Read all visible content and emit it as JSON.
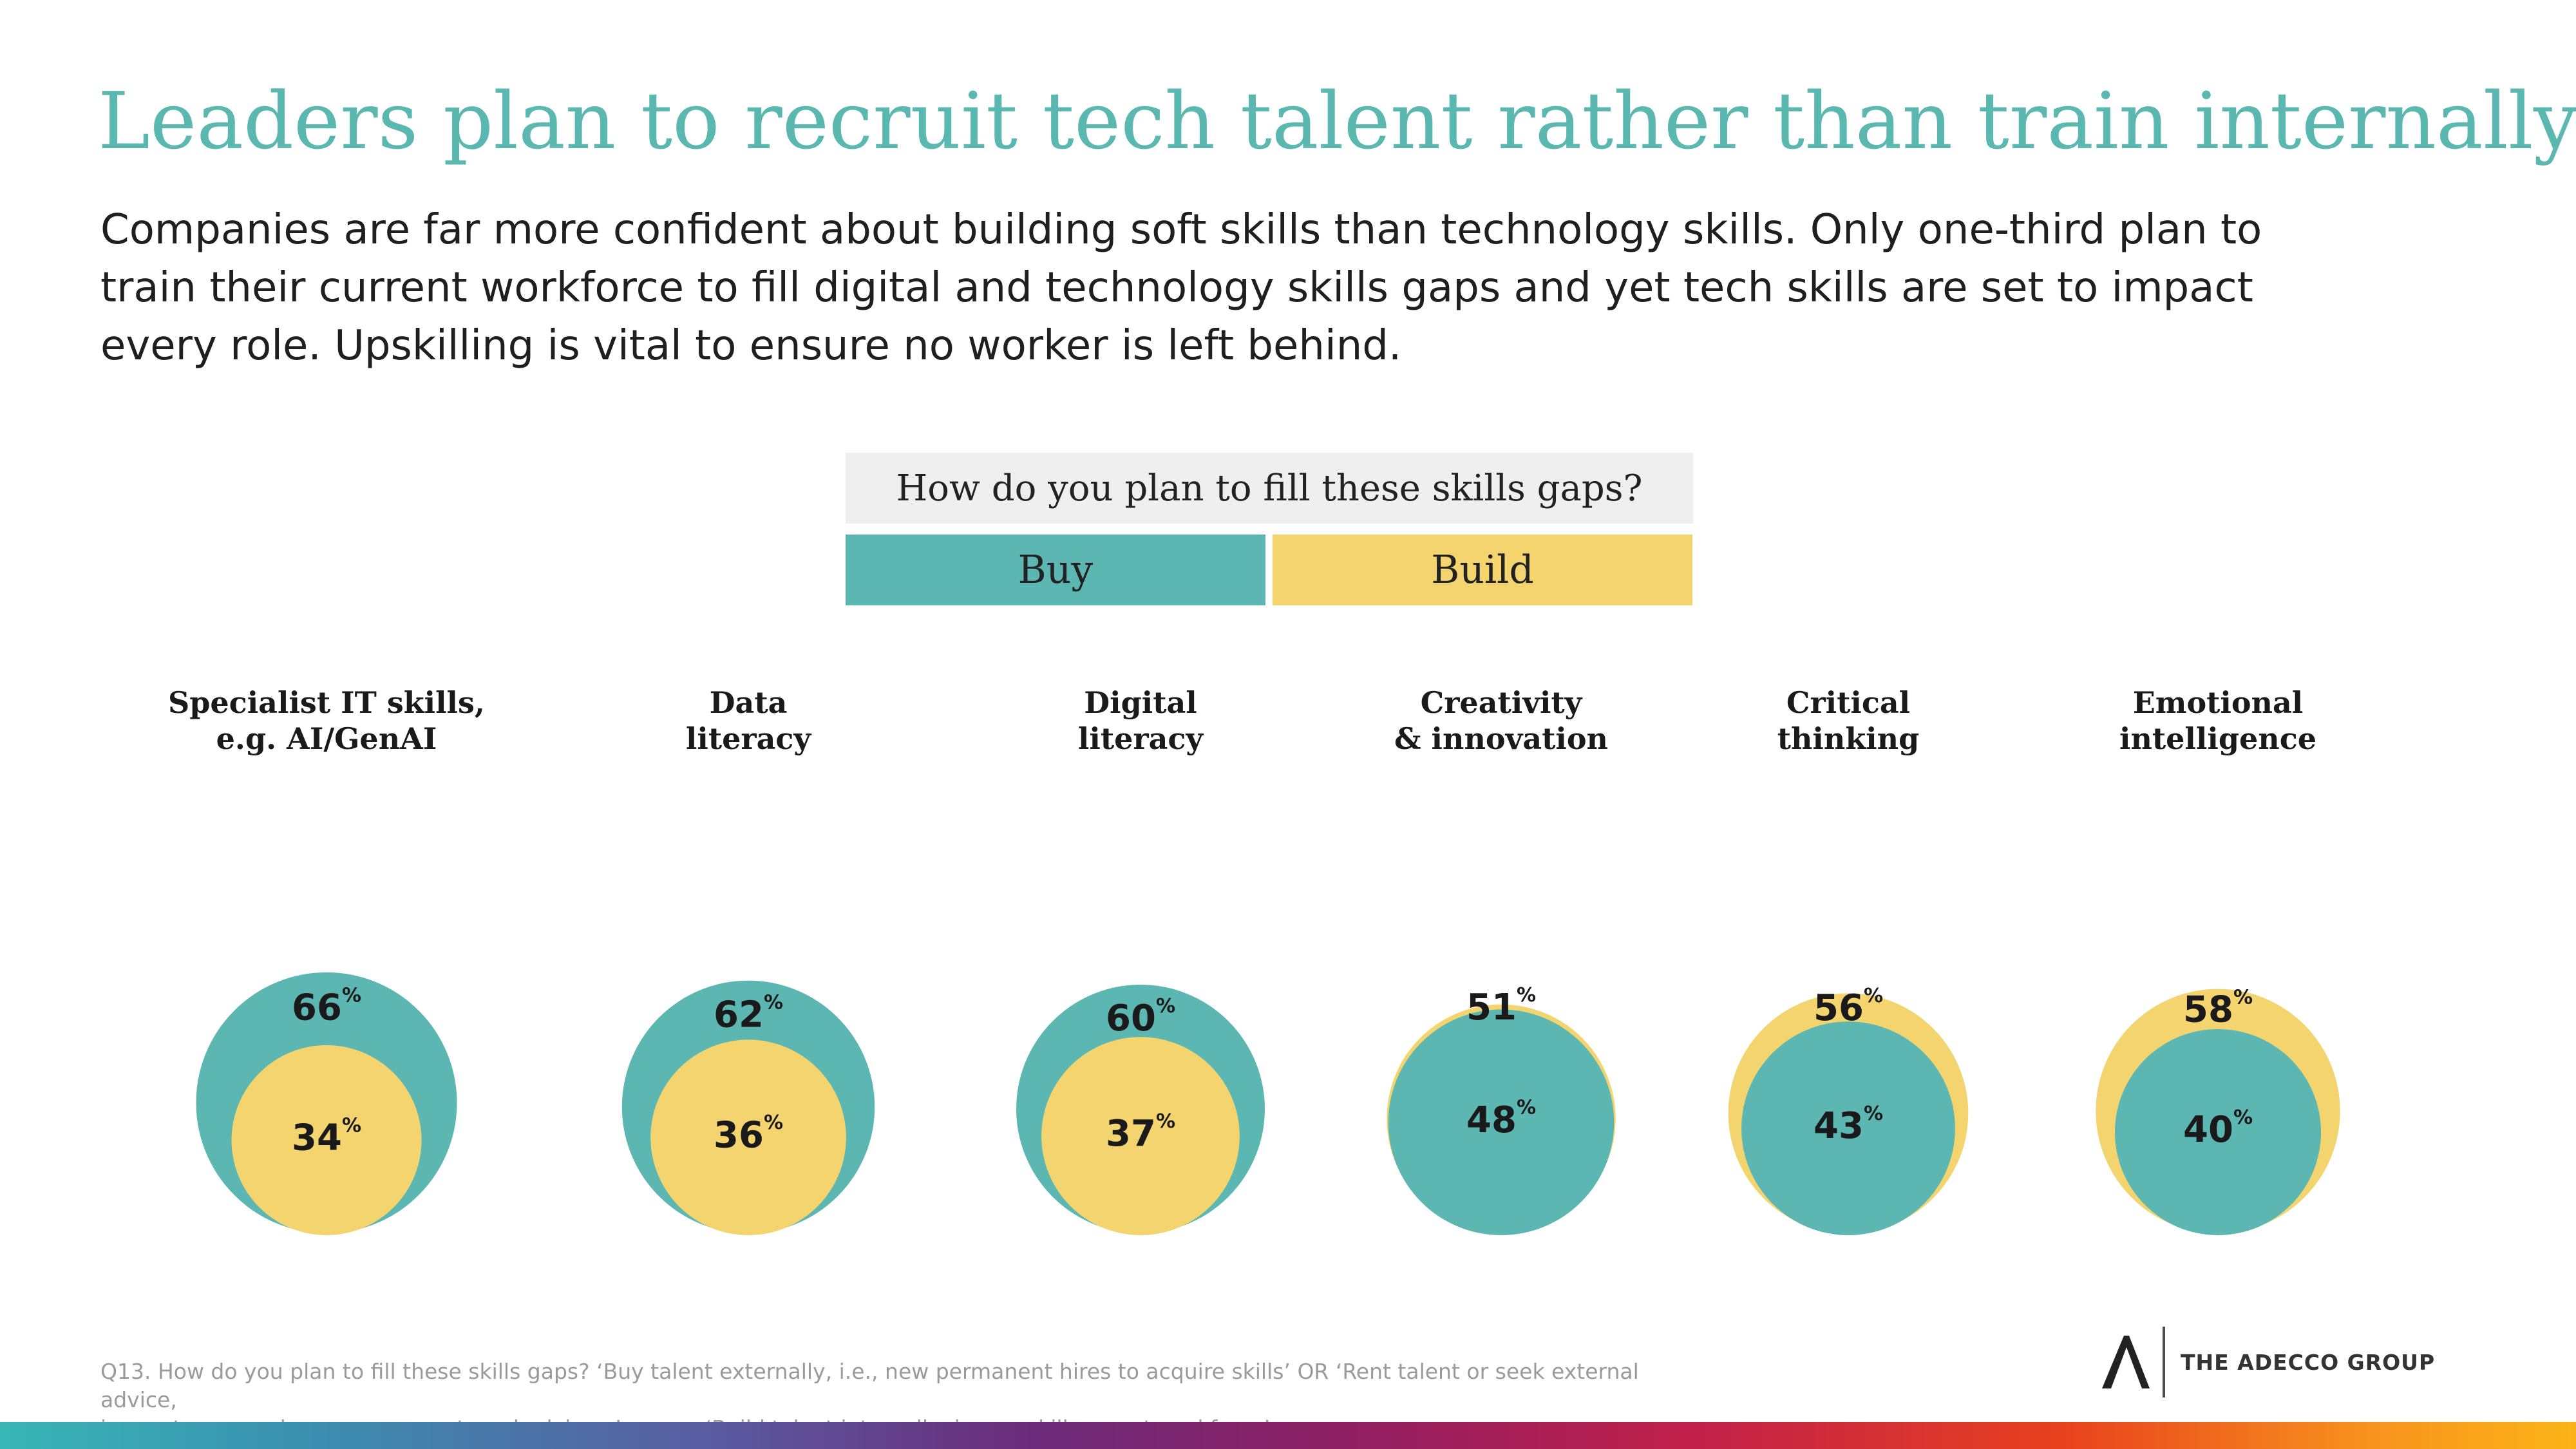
{
  "title": "Leaders plan to recruit tech talent rather than train internally",
  "subtitle": "Companies are far more confident about building soft skills than technology skills. Only one-third plan to train their current workforce to fill digital and technology skills gaps and yet tech skills are set to impact every role. Upskilling is vital to ensure no worker is left behind.",
  "question": "How do you plan to fill these skills gaps?",
  "legend": {
    "buy": "Buy",
    "build": "Build"
  },
  "colors": {
    "buy": "#5cb7b2",
    "build": "#f3d46f",
    "title": "#5ab8b0"
  },
  "chart_data": {
    "type": "bubble",
    "unit": "%",
    "series": [
      {
        "name": "Buy",
        "color": "#5cb7b2"
      },
      {
        "name": "Build",
        "color": "#f3d46f"
      }
    ],
    "categories": [
      {
        "label": [
          "Specialist IT skills,",
          "e.g. AI/GenAI"
        ],
        "buy": 66,
        "build": 34
      },
      {
        "label": [
          "Data",
          "literacy"
        ],
        "buy": 62,
        "build": 36
      },
      {
        "label": [
          "Digital",
          "literacy"
        ],
        "buy": 60,
        "build": 37
      },
      {
        "label": [
          "Creativity",
          "& innovation"
        ],
        "buy": 48,
        "build": 51
      },
      {
        "label": [
          "Critical",
          "thinking"
        ],
        "buy": 43,
        "build": 56
      },
      {
        "label": [
          "Emotional",
          "intelligence"
        ],
        "buy": 40,
        "build": 58
      }
    ]
  },
  "footnote": {
    "line1": "Q13. How do you plan to fill these skills gaps?  ‘Buy talent externally, i.e., new permanent hires to acquire skills’ OR ‘Rent talent or seek external advice,",
    "line2": "i.e., outsource roles or engage external advisors’ versus ‘Build talent internally, i.e., upskill current workforce’"
  },
  "logo": {
    "mark": "A",
    "text": "THE ADECCO GROUP"
  }
}
